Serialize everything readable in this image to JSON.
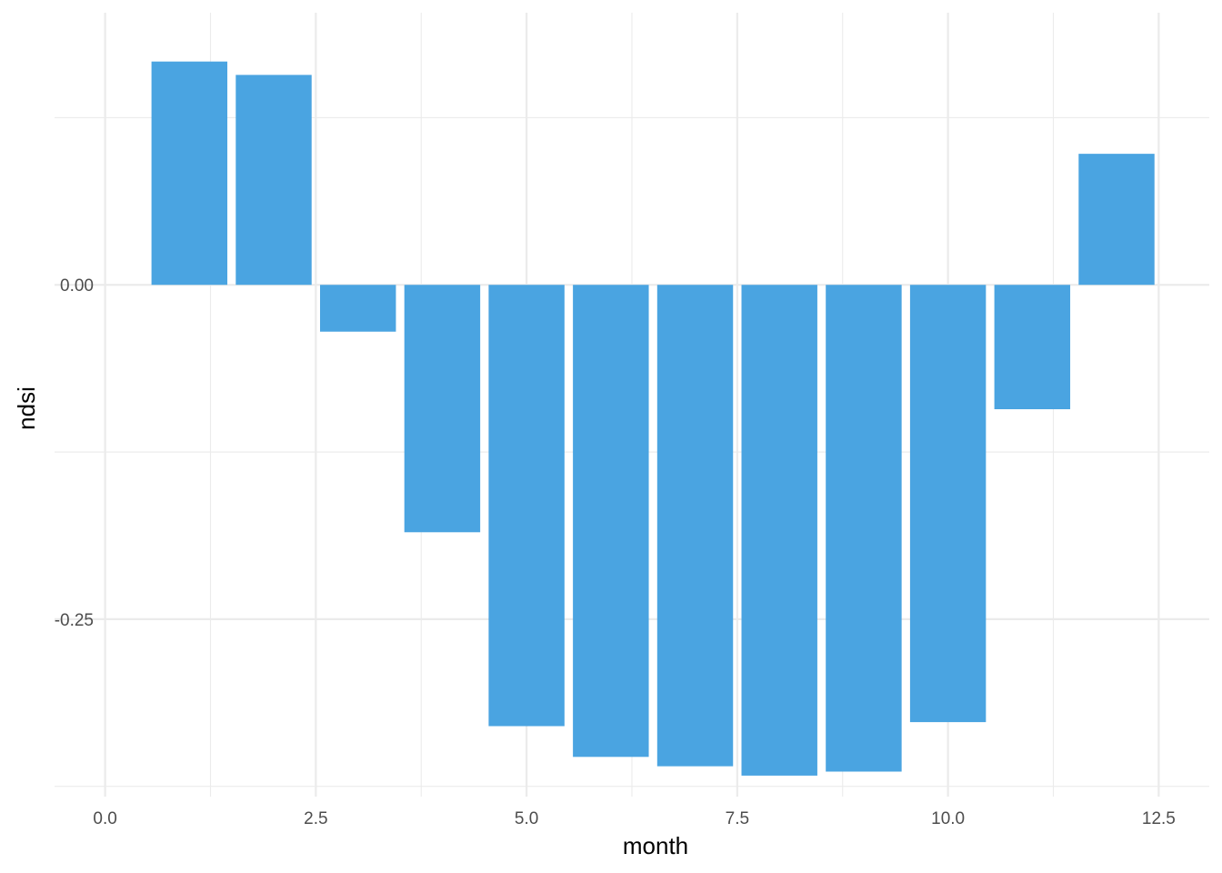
{
  "chart_data": {
    "type": "bar",
    "x": [
      1,
      2,
      3,
      4,
      5,
      6,
      7,
      8,
      9,
      10,
      11,
      12
    ],
    "values": [
      0.167,
      0.157,
      -0.035,
      -0.185,
      -0.33,
      -0.353,
      -0.36,
      -0.367,
      -0.364,
      -0.327,
      -0.093,
      0.098
    ],
    "bar_width": 0.9,
    "xlabel": "month",
    "ylabel": "ndsi",
    "xlim": [
      0.0,
      12.5
    ],
    "ylim": [
      -0.37,
      0.195
    ],
    "x_ticks": [
      "0.0",
      "2.5",
      "5.0",
      "7.5",
      "10.0",
      "12.5"
    ],
    "y_ticks": [
      "0.00",
      "-0.25"
    ],
    "bar_color": "#4aa4e1",
    "grid": true,
    "legend": "none"
  }
}
